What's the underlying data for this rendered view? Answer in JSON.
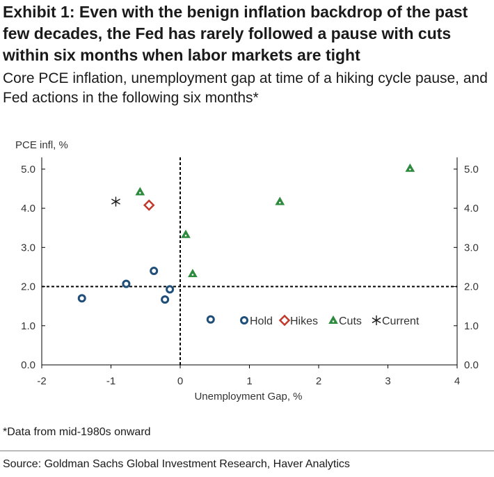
{
  "title": "Exhibit 1: Even with the benign inflation backdrop of the past few decades, the Fed has rarely followed a pause with cuts within six months when labor markets are tight",
  "subtitle": "Core PCE inflation, unemployment gap at time of a hiking cycle pause, and Fed actions in the following six months*",
  "footnote": "*Data from mid-1980s onward",
  "source": "Source: Goldman Sachs Global Investment Research, Haver Analytics",
  "colors": {
    "hold": "#1f4e79",
    "hikes": "#c0392b",
    "cuts": "#2e8b3e",
    "current": "#1a1a1a"
  },
  "chart_data": {
    "type": "scatter",
    "ylabel": "PCE infl, %",
    "xlabel": "Unemployment Gap, %",
    "xlim": [
      -2,
      4
    ],
    "ylim": [
      0,
      5.3
    ],
    "x_ticks": [
      "-2",
      "-1",
      "0",
      "1",
      "2",
      "3",
      "4"
    ],
    "y_ticks": [
      "0.0",
      "1.0",
      "2.0",
      "3.0",
      "4.0",
      "5.0"
    ],
    "reference_lines": {
      "x": 0,
      "y": 2.0
    },
    "legend_position": "inside-bottom-right",
    "series": [
      {
        "name": "Hold",
        "marker": "circle",
        "points": [
          [
            -1.42,
            1.7
          ],
          [
            -0.78,
            2.07
          ],
          [
            -0.38,
            2.4
          ],
          [
            -0.15,
            1.93
          ],
          [
            -0.22,
            1.67
          ],
          [
            0.44,
            1.16
          ]
        ]
      },
      {
        "name": "Hikes",
        "marker": "diamond",
        "points": [
          [
            -0.45,
            4.08
          ]
        ]
      },
      {
        "name": "Cuts",
        "marker": "triangle",
        "points": [
          [
            -0.58,
            4.42
          ],
          [
            0.08,
            3.33
          ],
          [
            0.18,
            2.33
          ],
          [
            1.44,
            4.17
          ],
          [
            3.32,
            5.02
          ]
        ]
      },
      {
        "name": "Current",
        "marker": "asterisk",
        "points": [
          [
            -0.93,
            4.17
          ]
        ]
      }
    ]
  }
}
